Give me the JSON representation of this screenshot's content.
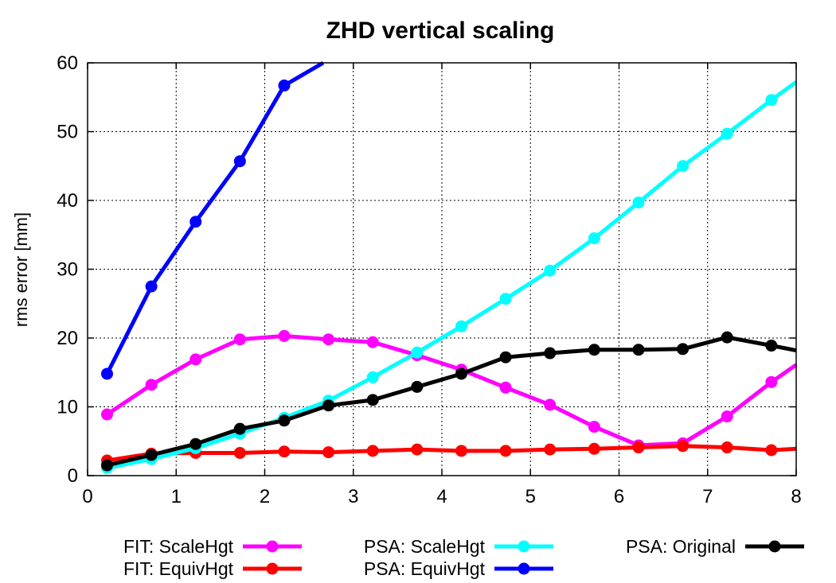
{
  "chart_data": {
    "type": "line",
    "title": "ZHD vertical scaling",
    "xlabel": "",
    "ylabel": "rms error [mm]",
    "xlim": [
      0,
      8
    ],
    "ylim": [
      0,
      60
    ],
    "xticks": [
      "0",
      "1",
      "2",
      "3",
      "4",
      "5",
      "6",
      "7",
      "8"
    ],
    "yticks": [
      "0",
      "10",
      "20",
      "30",
      "40",
      "50",
      "60"
    ],
    "grid": true,
    "legend_position": "bottom",
    "series": [
      {
        "name": "FIT: ScaleHgt",
        "color": "#ff00ff",
        "x": [
          0.22,
          0.72,
          1.22,
          1.72,
          2.22,
          2.72,
          3.22,
          3.72,
          4.22,
          4.72,
          5.22,
          5.72,
          6.22,
          6.72,
          7.22,
          7.72,
          8.0
        ],
        "y": [
          8.9,
          13.2,
          16.9,
          19.8,
          20.3,
          19.8,
          19.4,
          17.5,
          15.4,
          12.8,
          10.3,
          7.1,
          4.4,
          4.7,
          8.6,
          13.6,
          16.1
        ]
      },
      {
        "name": "FIT: EquivHgt",
        "color": "#ff0000",
        "x": [
          0.22,
          0.72,
          1.22,
          1.72,
          2.22,
          2.72,
          3.22,
          3.72,
          4.22,
          4.72,
          5.22,
          5.72,
          6.22,
          6.72,
          7.22,
          7.72,
          8.0
        ],
        "y": [
          2.2,
          3.2,
          3.3,
          3.3,
          3.5,
          3.4,
          3.6,
          3.8,
          3.6,
          3.6,
          3.8,
          3.9,
          4.1,
          4.3,
          4.1,
          3.7,
          3.9
        ]
      },
      {
        "name": "PSA: ScaleHgt",
        "color": "#00ffff",
        "x": [
          0.22,
          0.72,
          1.22,
          1.72,
          2.22,
          2.72,
          3.22,
          3.72,
          4.22,
          4.72,
          5.22,
          5.72,
          6.22,
          6.72,
          7.22,
          7.72,
          8.0
        ],
        "y": [
          1.1,
          2.4,
          4.0,
          6.1,
          8.4,
          10.9,
          14.3,
          17.9,
          21.7,
          25.7,
          29.8,
          34.5,
          39.7,
          45.0,
          49.7,
          54.6,
          57.2
        ]
      },
      {
        "name": "PSA: EquivHgt",
        "color": "#0000ff",
        "x": [
          0.22,
          0.72,
          1.22,
          1.72,
          2.22,
          2.66
        ],
        "y": [
          14.8,
          27.5,
          36.9,
          45.7,
          56.7,
          60.0
        ]
      },
      {
        "name": "PSA: Original",
        "color": "#000000",
        "x": [
          0.22,
          0.72,
          1.22,
          1.72,
          2.22,
          2.72,
          3.22,
          3.72,
          4.22,
          4.72,
          5.22,
          5.72,
          6.22,
          6.72,
          7.22,
          7.72,
          8.0
        ],
        "y": [
          1.5,
          3.0,
          4.6,
          6.8,
          8.0,
          10.2,
          11.0,
          12.9,
          14.8,
          17.2,
          17.8,
          18.3,
          18.3,
          18.4,
          20.1,
          18.9,
          18.2
        ]
      }
    ]
  }
}
